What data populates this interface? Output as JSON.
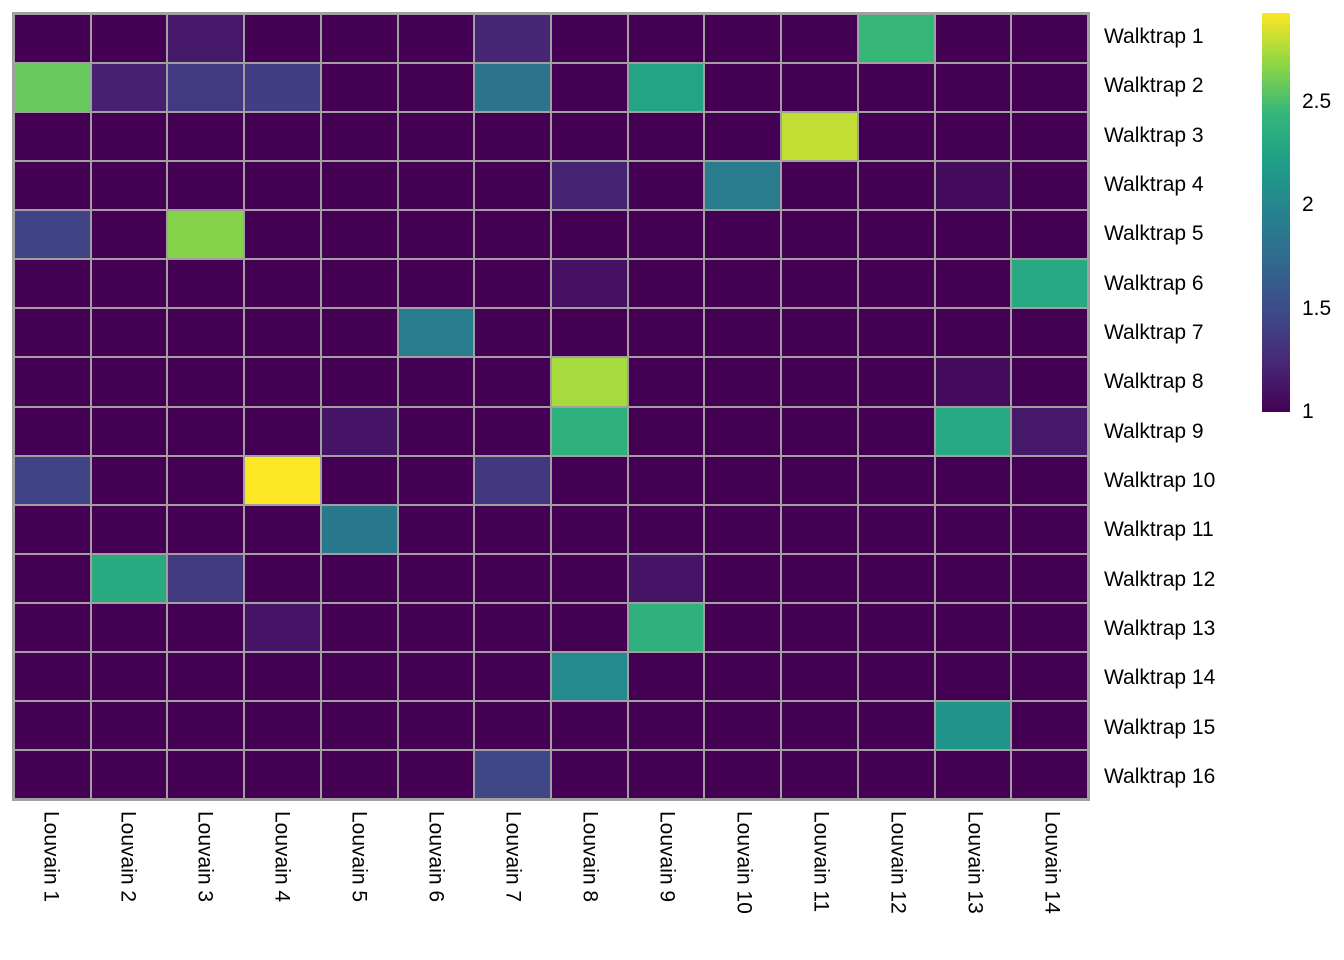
{
  "chart_data": {
    "type": "heatmap",
    "rows": [
      "Walktrap 1",
      "Walktrap 2",
      "Walktrap 3",
      "Walktrap 4",
      "Walktrap 5",
      "Walktrap 6",
      "Walktrap 7",
      "Walktrap 8",
      "Walktrap 9",
      "Walktrap 10",
      "Walktrap 11",
      "Walktrap 12",
      "Walktrap 13",
      "Walktrap 14",
      "Walktrap 15",
      "Walktrap 16"
    ],
    "columns": [
      "Louvain 1",
      "Louvain 2",
      "Louvain 3",
      "Louvain 4",
      "Louvain 5",
      "Louvain 6",
      "Louvain 7",
      "Louvain 8",
      "Louvain 9",
      "Louvain 10",
      "Louvain 11",
      "Louvain 12",
      "Louvain 13",
      "Louvain 14"
    ],
    "values": [
      [
        1,
        1,
        1.14,
        1,
        1,
        1,
        1.23,
        1,
        1,
        1,
        1,
        2.45,
        1,
        1
      ],
      [
        2.58,
        1.19,
        1.36,
        1.4,
        1,
        1,
        1.83,
        1,
        2.26,
        1,
        1,
        1,
        1,
        1
      ],
      [
        1,
        1,
        1,
        1,
        1,
        1,
        1,
        1,
        1,
        1,
        2.8,
        1,
        1,
        1
      ],
      [
        1,
        1,
        1,
        1,
        1,
        1,
        1,
        1.21,
        1,
        1.91,
        1,
        1,
        1.06,
        1
      ],
      [
        1.43,
        1,
        2.66,
        1,
        1,
        1,
        1,
        1,
        1,
        1,
        1,
        1,
        1,
        1
      ],
      [
        1,
        1,
        1,
        1,
        1,
        1,
        1,
        1.1,
        1,
        1,
        1,
        1,
        1,
        2.3
      ],
      [
        1,
        1,
        1,
        1,
        1,
        1.91,
        1,
        1,
        1,
        1,
        1,
        1,
        1,
        1
      ],
      [
        1,
        1,
        1,
        1,
        1,
        1,
        1,
        2.74,
        1,
        1,
        1,
        1,
        1.06,
        1
      ],
      [
        1,
        1,
        1,
        1,
        1.12,
        1,
        1,
        2.38,
        1,
        1,
        1,
        1,
        2.3,
        1.14
      ],
      [
        1.43,
        1,
        1,
        2.93,
        1,
        1,
        1.35,
        1,
        1,
        1,
        1,
        1,
        1,
        1
      ],
      [
        1,
        1,
        1,
        1,
        1.87,
        1,
        1,
        1,
        1,
        1,
        1,
        1,
        1,
        1
      ],
      [
        1,
        2.32,
        1.36,
        1,
        1,
        1,
        1,
        1,
        1.12,
        1,
        1,
        1,
        1,
        1
      ],
      [
        1,
        1,
        1,
        1.12,
        1,
        1,
        1,
        1,
        2.38,
        1,
        1,
        1,
        1,
        1
      ],
      [
        1,
        1,
        1,
        1,
        1,
        1,
        1,
        2.03,
        1,
        1,
        1,
        1,
        1,
        1
      ],
      [
        1,
        1,
        1,
        1,
        1,
        1,
        1,
        1,
        1,
        1,
        1,
        1,
        2.13,
        1
      ],
      [
        1,
        1,
        1,
        1,
        1,
        1,
        1.46,
        1,
        1,
        1,
        1,
        1,
        1,
        1
      ]
    ],
    "value_range": {
      "min": 1,
      "max": 2.93
    },
    "legend": {
      "position": "right",
      "ticks": [
        {
          "label": "2.5",
          "value": 2.5
        },
        {
          "label": "2",
          "value": 2.0
        },
        {
          "label": "1.5",
          "value": 1.5
        },
        {
          "label": "1",
          "value": 1.0
        }
      ]
    },
    "colormap": {
      "name": "viridis",
      "stops": [
        "#440154",
        "#482878",
        "#3e4a89",
        "#31688e",
        "#26828e",
        "#1f9e89",
        "#35b779",
        "#90d743",
        "#fde725"
      ]
    },
    "colors": {
      "background": "#ffffff",
      "grid_line": "#a0a0a0",
      "label_text": "#000000"
    },
    "grid": true
  }
}
